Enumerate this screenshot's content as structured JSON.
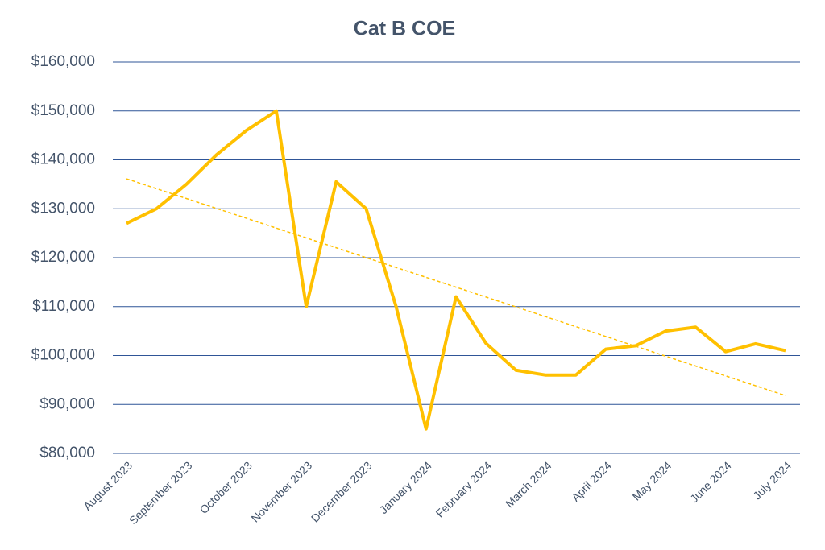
{
  "chart_data": {
    "type": "line",
    "title": "Cat B COE",
    "categories": [
      "August 2023",
      null,
      "September 2023",
      null,
      "October 2023",
      null,
      "November 2023",
      null,
      "December 2023",
      null,
      "January 2024",
      null,
      "February 2024",
      null,
      "March 2024",
      null,
      "April 2024",
      null,
      "May 2024",
      null,
      "June 2024",
      null,
      "July 2024"
    ],
    "series": [
      {
        "name": "Cat B COE",
        "color": "#ffc000",
        "values": [
          127000,
          130000,
          135000,
          141000,
          146000,
          150000,
          110000,
          135500,
          130000,
          110000,
          85000,
          112000,
          102500,
          97000,
          96000,
          96000,
          101300,
          102000,
          105000,
          105800,
          100800,
          102400,
          101000
        ]
      }
    ],
    "trendline": "linear",
    "ylim": [
      80000,
      160000
    ],
    "yticks": [
      {
        "value": 80000,
        "label": "$80,000"
      },
      {
        "value": 90000,
        "label": "$90,000"
      },
      {
        "value": 100000,
        "label": "$100,000"
      },
      {
        "value": 110000,
        "label": "$110,000"
      },
      {
        "value": 120000,
        "label": "$120,000"
      },
      {
        "value": 130000,
        "label": "$130,000"
      },
      {
        "value": 140000,
        "label": "$140,000"
      },
      {
        "value": 150000,
        "label": "$150,000"
      },
      {
        "value": 160000,
        "label": "$160,000"
      }
    ],
    "grid": true
  }
}
